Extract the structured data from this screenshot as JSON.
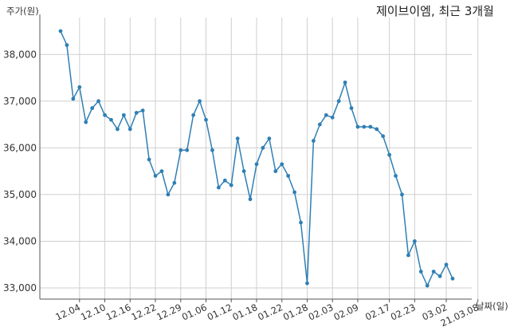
{
  "chart_data": {
    "type": "line",
    "title": "제이브이엠, 최근 3개월",
    "xlabel": "날짜(일)",
    "ylabel": "주가(원)",
    "ylim": [
      32750,
      38750
    ],
    "grid": true,
    "line_color": "#2f7fb5",
    "ytick_labels": [
      "33,000",
      "34,000",
      "35,000",
      "36,000",
      "37,000",
      "38,000"
    ],
    "ytick_values": [
      33000,
      34000,
      35000,
      36000,
      37000,
      38000
    ],
    "xtick_labels": [
      "12.04",
      "12.10",
      "12.16",
      "12.22",
      "12.29",
      "01.06",
      "01.12",
      "01.18",
      "01.22",
      "01.28",
      "02.03",
      "02.09",
      "02.17",
      "02.23",
      "03.02",
      "21.03.08"
    ],
    "xtick_index": [
      3,
      7,
      11,
      15,
      19,
      23,
      27,
      31,
      35,
      39,
      43,
      47,
      52,
      56,
      61,
      66
    ],
    "values": [
      38500,
      38200,
      37050,
      37300,
      36550,
      36850,
      37000,
      36700,
      36600,
      36400,
      36700,
      36400,
      36750,
      36800,
      35750,
      35400,
      35500,
      35000,
      35250,
      35950,
      35950,
      36700,
      37000,
      36600,
      35950,
      35150,
      35300,
      35200,
      36200,
      35500,
      34900,
      35650,
      36000,
      36200,
      35500,
      35650,
      35400,
      35050,
      34400,
      33100,
      36150,
      36500,
      36700,
      36650,
      37000,
      37400,
      36850,
      36450,
      36450,
      36450,
      36400,
      36250,
      35850,
      35400,
      35000,
      33700,
      34000,
      33350,
      33050,
      33350,
      33250,
      33500,
      33200
    ]
  }
}
